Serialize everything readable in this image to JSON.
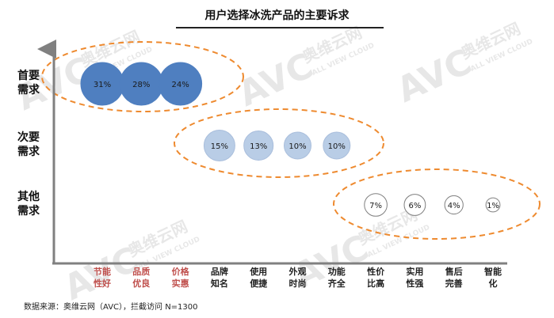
{
  "title": "用户选择冰洗产品的主要诉求",
  "source": "数据来源：奥维云网（AVC），拦截访问 N=1300",
  "watermark": {
    "brand": "AVC",
    "cn": "奥维云网",
    "en": "ALL VIEW CLOUD"
  },
  "colors": {
    "primary_fill": "#4f7fc0",
    "secondary_fill": "#b9cde6",
    "other_fill": "#ffffff",
    "ellipse": "#ee8a2f",
    "emphasis_label": "#c0504d",
    "normal_label": "#222222",
    "axis": "#808080"
  },
  "chart_data": {
    "type": "bubble",
    "title": "用户选择冰洗产品的主要诉求",
    "y_categories": [
      "首要需求",
      "次要需求",
      "其他需求"
    ],
    "x_categories": [
      "节能性好",
      "品质优良",
      "价格实惠",
      "品牌知名",
      "使用便捷",
      "外观时尚",
      "功能齐全",
      "性价比高",
      "实用性强",
      "售后完善",
      "智能化"
    ],
    "x_label_lines": [
      [
        "节能",
        "性好"
      ],
      [
        "品质",
        "优良"
      ],
      [
        "价格",
        "实惠"
      ],
      [
        "品牌",
        "知名"
      ],
      [
        "使用",
        "便捷"
      ],
      [
        "外观",
        "时尚"
      ],
      [
        "功能",
        "齐全"
      ],
      [
        "性价",
        "比高"
      ],
      [
        "实用",
        "性强"
      ],
      [
        "售后",
        "完善"
      ],
      [
        "智能",
        "化"
      ]
    ],
    "y_label_lines": [
      [
        "首要",
        "需求"
      ],
      [
        "次要",
        "需求"
      ],
      [
        "其他",
        "需求"
      ]
    ],
    "series": [
      {
        "tier": "首要需求",
        "points": [
          {
            "category": "节能性好",
            "value": 31,
            "label": "31%"
          },
          {
            "category": "品质优良",
            "value": 28,
            "label": "28%"
          },
          {
            "category": "价格实惠",
            "value": 24,
            "label": "24%"
          }
        ]
      },
      {
        "tier": "次要需求",
        "points": [
          {
            "category": "品牌知名",
            "value": 15,
            "label": "15%"
          },
          {
            "category": "使用便捷",
            "value": 13,
            "label": "13%"
          },
          {
            "category": "外观时尚",
            "value": 10,
            "label": "10%"
          },
          {
            "category": "功能齐全",
            "value": 10,
            "label": "10%"
          }
        ]
      },
      {
        "tier": "其他需求",
        "points": [
          {
            "category": "性价比高",
            "value": 7,
            "label": "7%"
          },
          {
            "category": "实用性强",
            "value": 6,
            "label": "6%"
          },
          {
            "category": "售后完善",
            "value": 4,
            "label": "4%"
          },
          {
            "category": "智能化",
            "value": 1,
            "label": "1%"
          }
        ]
      }
    ],
    "emphasized_categories": [
      "节能性好",
      "品质优良",
      "价格实惠"
    ],
    "grid": false,
    "legend": "none"
  }
}
